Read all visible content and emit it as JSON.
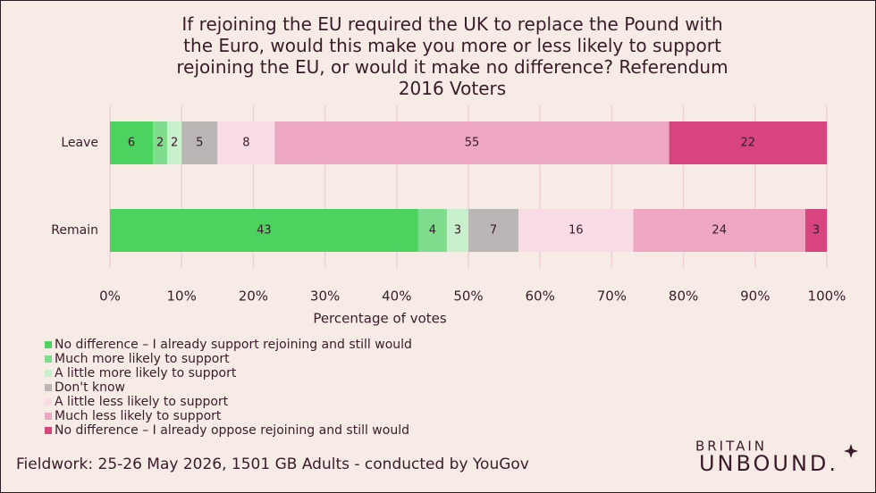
{
  "chart_data": {
    "type": "stacked_bar",
    "orientation": "horizontal",
    "title": "If rejoining the EU required the UK to replace the Pound with the Euro, would this make you more or less likely to support rejoining the EU, or would it make no difference? Referendum 2016 Voters",
    "x_label": "Percentage of votes",
    "categories": [
      "Leave",
      "Remain"
    ],
    "series": [
      {
        "name": "No difference – I already support rejoining and still would",
        "color": "#4cd25e",
        "values": [
          6,
          43
        ]
      },
      {
        "name": "Much more likely to support",
        "color": "#7fdc8c",
        "values": [
          2,
          4
        ]
      },
      {
        "name": "A little more likely to support",
        "color": "#c8f0cd",
        "values": [
          2,
          3
        ]
      },
      {
        "name": "Don't know",
        "color": "#b9b6b5",
        "values": [
          5,
          7
        ]
      },
      {
        "name": "A little less likely to support",
        "color": "#f8dbe5",
        "values": [
          8,
          16
        ]
      },
      {
        "name": "Much less likely to support",
        "color": "#eea7c2",
        "values": [
          55,
          24
        ]
      },
      {
        "name": "No difference – I already oppose rejoining and still would",
        "color": "#d8457e",
        "values": [
          22,
          3
        ]
      }
    ],
    "xlim": [
      0,
      100
    ],
    "xticks": [
      {
        "value": 0,
        "label": "0%"
      },
      {
        "value": 10,
        "label": "10%"
      },
      {
        "value": 20,
        "label": "20%"
      },
      {
        "value": 30,
        "label": "30%"
      },
      {
        "value": 40,
        "label": "40%"
      },
      {
        "value": 50,
        "label": "50%"
      },
      {
        "value": 60,
        "label": "60%"
      },
      {
        "value": 70,
        "label": "70%"
      },
      {
        "value": 80,
        "label": "80%"
      },
      {
        "value": 90,
        "label": "90%"
      },
      {
        "value": 100,
        "label": "100%"
      }
    ],
    "grid": true
  },
  "footer": "Fieldwork: 25-26 May 2026, 1501 GB Adults - conducted by YouGov",
  "logo": {
    "line1": "BRITAIN",
    "line2": "UNBOUND."
  }
}
